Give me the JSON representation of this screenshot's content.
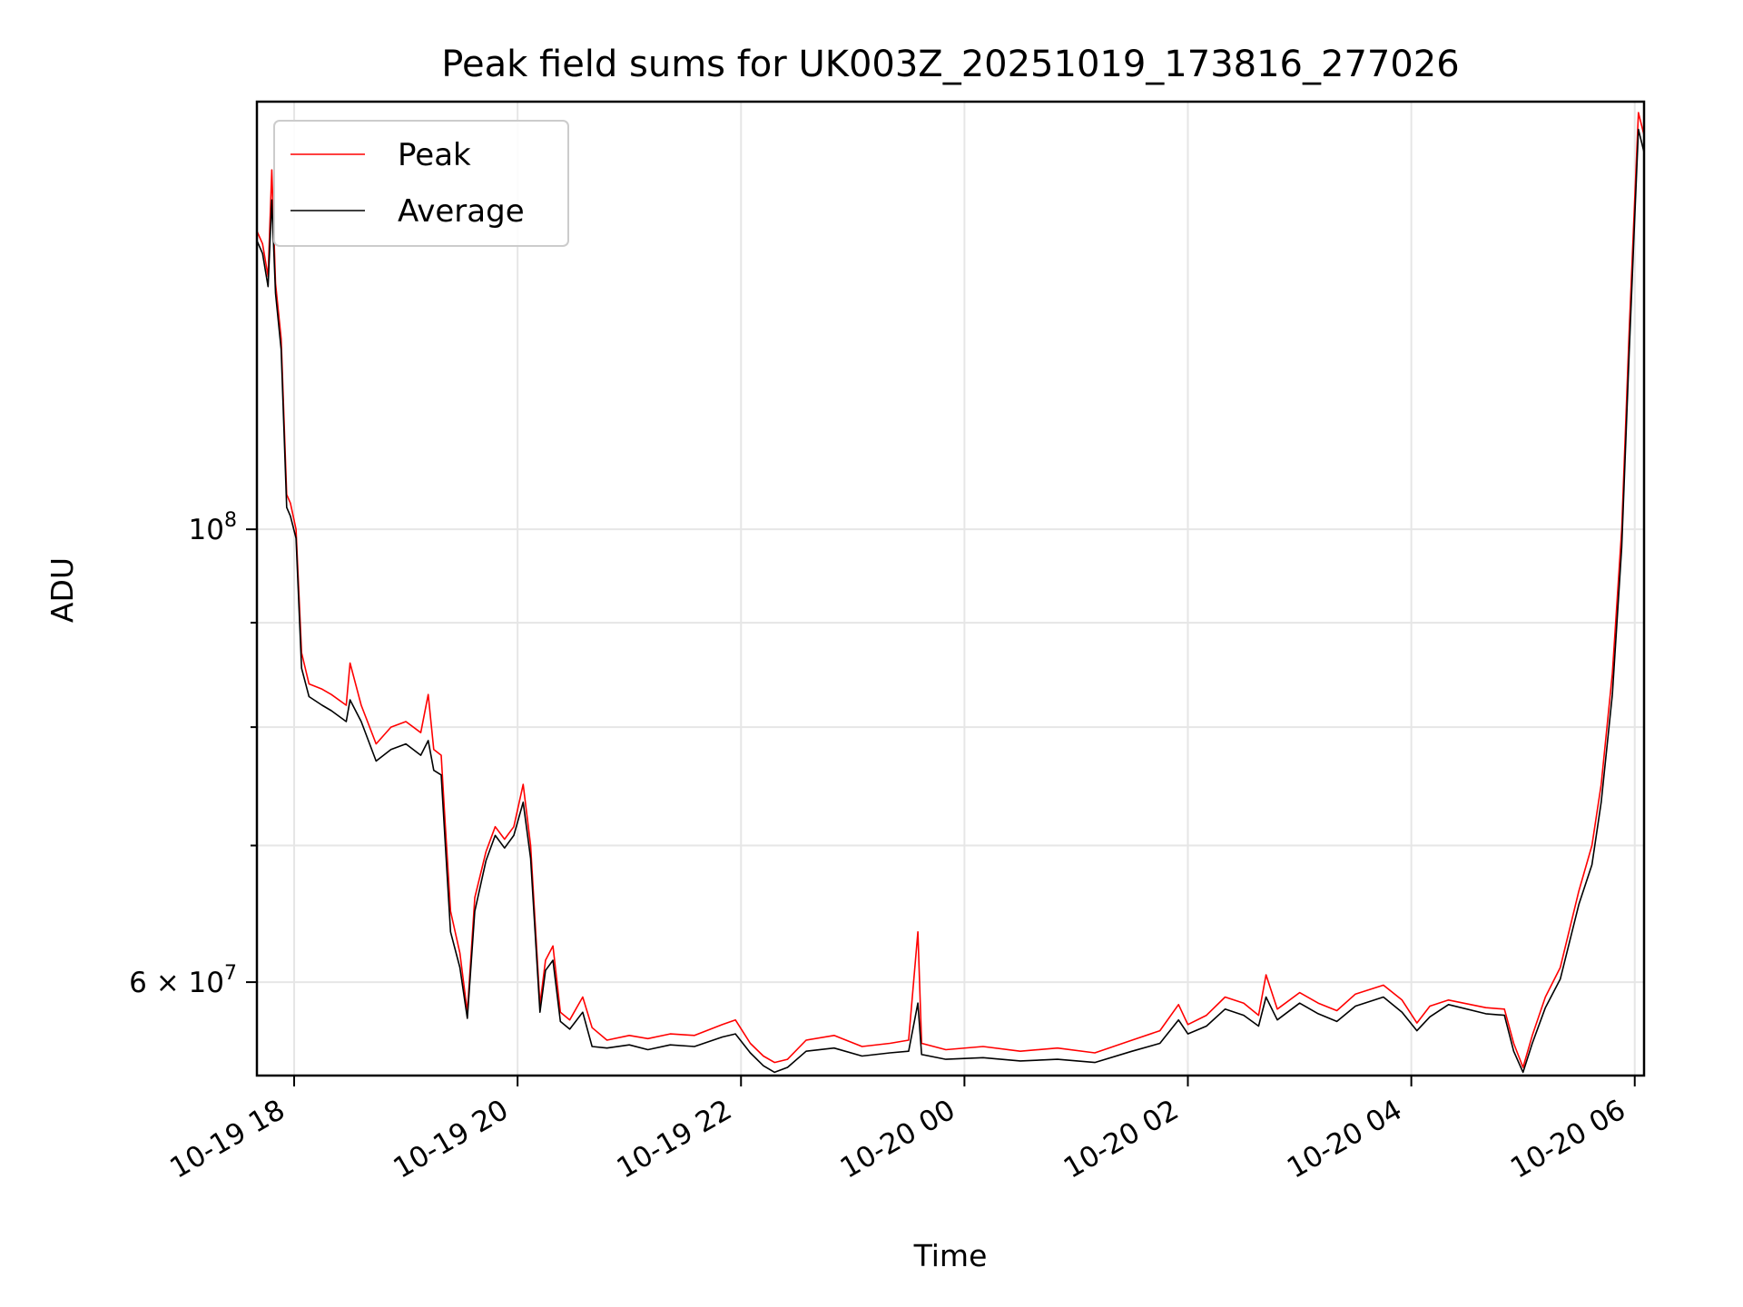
{
  "chart_data": {
    "type": "line",
    "title": "Peak field sums for UK003Z_20251019_173816_277026",
    "xlabel": "Time",
    "ylabel": "ADU",
    "y_scale": "log",
    "grid": true,
    "legend_position": "top-left",
    "x_range": [
      "2025-10-19 17:40",
      "2025-10-20 06:05"
    ],
    "ylim": [
      54000000,
      162000000
    ],
    "x_ticks": [
      "10-19 18",
      "10-19 20",
      "10-19 22",
      "10-20 00",
      "10-20 02",
      "10-20 04",
      "10-20 06"
    ],
    "x_tick_times": [
      "2025-10-19 18:00",
      "2025-10-19 20:00",
      "2025-10-19 22:00",
      "2025-10-20 00:00",
      "2025-10-20 02:00",
      "2025-10-20 04:00",
      "2025-10-20 06:00"
    ],
    "y_ticks": [
      {
        "value": 60000000,
        "label": "6 × 10",
        "exp": "7",
        "major": true
      },
      {
        "value": 70000000,
        "label": "",
        "exp": "",
        "major": false
      },
      {
        "value": 80000000,
        "label": "",
        "exp": "",
        "major": false
      },
      {
        "value": 90000000,
        "label": "",
        "exp": "",
        "major": false
      },
      {
        "value": 100000000,
        "label": "10",
        "exp": "8",
        "major": true
      }
    ],
    "series": [
      {
        "name": "Peak",
        "color": "#ff0000",
        "points": [
          [
            "2025-10-19 17:40",
            140000000
          ],
          [
            "2025-10-19 17:43",
            138000000
          ],
          [
            "2025-10-19 17:46",
            133000000
          ],
          [
            "2025-10-19 17:48",
            150000000
          ],
          [
            "2025-10-19 17:50",
            132000000
          ],
          [
            "2025-10-19 17:53",
            124000000
          ],
          [
            "2025-10-19 17:56",
            104000000
          ],
          [
            "2025-10-19 17:58",
            103000000
          ],
          [
            "2025-10-19 18:01",
            100000000
          ],
          [
            "2025-10-19 18:04",
            87000000
          ],
          [
            "2025-10-19 18:08",
            84000000
          ],
          [
            "2025-10-19 18:15",
            83500000
          ],
          [
            "2025-10-19 18:20",
            83000000
          ],
          [
            "2025-10-19 18:28",
            82000000
          ],
          [
            "2025-10-19 18:30",
            86000000
          ],
          [
            "2025-10-19 18:36",
            82000000
          ],
          [
            "2025-10-19 18:44",
            78500000
          ],
          [
            "2025-10-19 18:52",
            80000000
          ],
          [
            "2025-10-19 19:00",
            80500000
          ],
          [
            "2025-10-19 19:08",
            79500000
          ],
          [
            "2025-10-19 19:12",
            83000000
          ],
          [
            "2025-10-19 19:15",
            78000000
          ],
          [
            "2025-10-19 19:19",
            77500000
          ],
          [
            "2025-10-19 19:21",
            72000000
          ],
          [
            "2025-10-19 19:24",
            65000000
          ],
          [
            "2025-10-19 19:29",
            62000000
          ],
          [
            "2025-10-19 19:33",
            58000000
          ],
          [
            "2025-10-19 19:37",
            66000000
          ],
          [
            "2025-10-19 19:43",
            69500000
          ],
          [
            "2025-10-19 19:48",
            71500000
          ],
          [
            "2025-10-19 19:53",
            70500000
          ],
          [
            "2025-10-19 19:58",
            71500000
          ],
          [
            "2025-10-19 20:03",
            75000000
          ],
          [
            "2025-10-19 20:07",
            70000000
          ],
          [
            "2025-10-19 20:12",
            58500000
          ],
          [
            "2025-10-19 20:15",
            61500000
          ],
          [
            "2025-10-19 20:19",
            62500000
          ],
          [
            "2025-10-19 20:23",
            58000000
          ],
          [
            "2025-10-19 20:28",
            57500000
          ],
          [
            "2025-10-19 20:35",
            59000000
          ],
          [
            "2025-10-19 20:40",
            57000000
          ],
          [
            "2025-10-19 20:48",
            56200000
          ],
          [
            "2025-10-19 21:00",
            56500000
          ],
          [
            "2025-10-19 21:10",
            56300000
          ],
          [
            "2025-10-19 21:22",
            56600000
          ],
          [
            "2025-10-19 21:35",
            56500000
          ],
          [
            "2025-10-19 21:50",
            57200000
          ],
          [
            "2025-10-19 21:57",
            57500000
          ],
          [
            "2025-10-19 22:05",
            56000000
          ],
          [
            "2025-10-19 22:12",
            55200000
          ],
          [
            "2025-10-19 22:18",
            54800000
          ],
          [
            "2025-10-19 22:25",
            55000000
          ],
          [
            "2025-10-19 22:35",
            56200000
          ],
          [
            "2025-10-19 22:50",
            56500000
          ],
          [
            "2025-10-19 23:05",
            55800000
          ],
          [
            "2025-10-19 23:20",
            56000000
          ],
          [
            "2025-10-19 23:30",
            56200000
          ],
          [
            "2025-10-19 23:35",
            63500000
          ],
          [
            "2025-10-19 23:37",
            56000000
          ],
          [
            "2025-10-19 23:50",
            55600000
          ],
          [
            "2025-10-20 00:10",
            55800000
          ],
          [
            "2025-10-20 00:30",
            55500000
          ],
          [
            "2025-10-20 00:50",
            55700000
          ],
          [
            "2025-10-20 01:10",
            55400000
          ],
          [
            "2025-10-20 01:30",
            56200000
          ],
          [
            "2025-10-20 01:45",
            56800000
          ],
          [
            "2025-10-20 01:55",
            58500000
          ],
          [
            "2025-10-20 02:00",
            57200000
          ],
          [
            "2025-10-20 02:10",
            57800000
          ],
          [
            "2025-10-20 02:20",
            59000000
          ],
          [
            "2025-10-20 02:30",
            58600000
          ],
          [
            "2025-10-20 02:38",
            57800000
          ],
          [
            "2025-10-20 02:42",
            60500000
          ],
          [
            "2025-10-20 02:48",
            58200000
          ],
          [
            "2025-10-20 03:00",
            59300000
          ],
          [
            "2025-10-20 03:10",
            58600000
          ],
          [
            "2025-10-20 03:20",
            58100000
          ],
          [
            "2025-10-20 03:30",
            59200000
          ],
          [
            "2025-10-20 03:45",
            59800000
          ],
          [
            "2025-10-20 03:55",
            58800000
          ],
          [
            "2025-10-20 04:03",
            57300000
          ],
          [
            "2025-10-20 04:10",
            58400000
          ],
          [
            "2025-10-20 04:20",
            58800000
          ],
          [
            "2025-10-20 04:40",
            58300000
          ],
          [
            "2025-10-20 04:50",
            58200000
          ],
          [
            "2025-10-20 04:55",
            56000000
          ],
          [
            "2025-10-20 05:00",
            54500000
          ],
          [
            "2025-10-20 05:05",
            56500000
          ],
          [
            "2025-10-20 05:12",
            59000000
          ],
          [
            "2025-10-20 05:20",
            61000000
          ],
          [
            "2025-10-20 05:30",
            66500000
          ],
          [
            "2025-10-20 05:37",
            70000000
          ],
          [
            "2025-10-20 05:42",
            75000000
          ],
          [
            "2025-10-20 05:48",
            85000000
          ],
          [
            "2025-10-20 05:53",
            100000000
          ],
          [
            "2025-10-20 05:57",
            125000000
          ],
          [
            "2025-10-20 06:00",
            145000000
          ],
          [
            "2025-10-20 06:02",
            160000000
          ],
          [
            "2025-10-20 06:05",
            156000000
          ]
        ]
      },
      {
        "name": "Average",
        "color": "#000000",
        "points": [
          [
            "2025-10-19 17:40",
            138500000
          ],
          [
            "2025-10-19 17:43",
            136500000
          ],
          [
            "2025-10-19 17:46",
            131500000
          ],
          [
            "2025-10-19 17:48",
            145000000
          ],
          [
            "2025-10-19 17:50",
            130500000
          ],
          [
            "2025-10-19 17:53",
            122500000
          ],
          [
            "2025-10-19 17:56",
            102500000
          ],
          [
            "2025-10-19 17:58",
            101500000
          ],
          [
            "2025-10-19 18:01",
            99000000
          ],
          [
            "2025-10-19 18:04",
            85500000
          ],
          [
            "2025-10-19 18:08",
            82800000
          ],
          [
            "2025-10-19 18:15",
            82000000
          ],
          [
            "2025-10-19 18:20",
            81500000
          ],
          [
            "2025-10-19 18:28",
            80500000
          ],
          [
            "2025-10-19 18:30",
            82500000
          ],
          [
            "2025-10-19 18:36",
            80500000
          ],
          [
            "2025-10-19 18:44",
            77000000
          ],
          [
            "2025-10-19 18:52",
            78000000
          ],
          [
            "2025-10-19 19:00",
            78500000
          ],
          [
            "2025-10-19 19:08",
            77500000
          ],
          [
            "2025-10-19 19:12",
            78800000
          ],
          [
            "2025-10-19 19:15",
            76200000
          ],
          [
            "2025-10-19 19:19",
            75800000
          ],
          [
            "2025-10-19 19:21",
            70500000
          ],
          [
            "2025-10-19 19:24",
            63500000
          ],
          [
            "2025-10-19 19:29",
            61000000
          ],
          [
            "2025-10-19 19:33",
            57600000
          ],
          [
            "2025-10-19 19:37",
            65000000
          ],
          [
            "2025-10-19 19:43",
            68800000
          ],
          [
            "2025-10-19 19:48",
            70800000
          ],
          [
            "2025-10-19 19:53",
            69800000
          ],
          [
            "2025-10-19 19:58",
            70800000
          ],
          [
            "2025-10-19 20:03",
            73500000
          ],
          [
            "2025-10-19 20:07",
            69000000
          ],
          [
            "2025-10-19 20:12",
            58000000
          ],
          [
            "2025-10-19 20:15",
            60800000
          ],
          [
            "2025-10-19 20:19",
            61500000
          ],
          [
            "2025-10-19 20:23",
            57400000
          ],
          [
            "2025-10-19 20:28",
            56900000
          ],
          [
            "2025-10-19 20:35",
            58000000
          ],
          [
            "2025-10-19 20:40",
            55800000
          ],
          [
            "2025-10-19 20:48",
            55700000
          ],
          [
            "2025-10-19 21:00",
            55900000
          ],
          [
            "2025-10-19 21:10",
            55600000
          ],
          [
            "2025-10-19 21:22",
            55900000
          ],
          [
            "2025-10-19 21:35",
            55800000
          ],
          [
            "2025-10-19 21:50",
            56400000
          ],
          [
            "2025-10-19 21:57",
            56600000
          ],
          [
            "2025-10-19 22:05",
            55400000
          ],
          [
            "2025-10-19 22:12",
            54600000
          ],
          [
            "2025-10-19 22:18",
            54200000
          ],
          [
            "2025-10-19 22:25",
            54500000
          ],
          [
            "2025-10-19 22:35",
            55500000
          ],
          [
            "2025-10-19 22:50",
            55700000
          ],
          [
            "2025-10-19 23:05",
            55200000
          ],
          [
            "2025-10-19 23:20",
            55400000
          ],
          [
            "2025-10-19 23:30",
            55500000
          ],
          [
            "2025-10-19 23:35",
            58600000
          ],
          [
            "2025-10-19 23:37",
            55300000
          ],
          [
            "2025-10-19 23:50",
            55000000
          ],
          [
            "2025-10-20 00:10",
            55100000
          ],
          [
            "2025-10-20 00:30",
            54900000
          ],
          [
            "2025-10-20 00:50",
            55000000
          ],
          [
            "2025-10-20 01:10",
            54800000
          ],
          [
            "2025-10-20 01:30",
            55500000
          ],
          [
            "2025-10-20 01:45",
            56000000
          ],
          [
            "2025-10-20 01:55",
            57500000
          ],
          [
            "2025-10-20 02:00",
            56600000
          ],
          [
            "2025-10-20 02:10",
            57100000
          ],
          [
            "2025-10-20 02:20",
            58200000
          ],
          [
            "2025-10-20 02:30",
            57800000
          ],
          [
            "2025-10-20 02:38",
            57100000
          ],
          [
            "2025-10-20 02:42",
            59000000
          ],
          [
            "2025-10-20 02:48",
            57500000
          ],
          [
            "2025-10-20 03:00",
            58600000
          ],
          [
            "2025-10-20 03:10",
            57900000
          ],
          [
            "2025-10-20 03:20",
            57400000
          ],
          [
            "2025-10-20 03:30",
            58400000
          ],
          [
            "2025-10-20 03:45",
            59000000
          ],
          [
            "2025-10-20 03:55",
            58000000
          ],
          [
            "2025-10-20 04:03",
            56800000
          ],
          [
            "2025-10-20 04:10",
            57700000
          ],
          [
            "2025-10-20 04:20",
            58500000
          ],
          [
            "2025-10-20 04:40",
            57900000
          ],
          [
            "2025-10-20 04:50",
            57800000
          ],
          [
            "2025-10-20 04:55",
            55500000
          ],
          [
            "2025-10-20 05:00",
            54200000
          ],
          [
            "2025-10-20 05:05",
            56000000
          ],
          [
            "2025-10-20 05:12",
            58300000
          ],
          [
            "2025-10-20 05:20",
            60200000
          ],
          [
            "2025-10-20 05:30",
            65500000
          ],
          [
            "2025-10-20 05:37",
            68500000
          ],
          [
            "2025-10-20 05:42",
            73500000
          ],
          [
            "2025-10-20 05:48",
            83000000
          ],
          [
            "2025-10-20 05:53",
            98000000
          ],
          [
            "2025-10-20 05:57",
            122000000
          ],
          [
            "2025-10-20 06:00",
            142000000
          ],
          [
            "2025-10-20 06:02",
            157000000
          ],
          [
            "2025-10-20 06:05",
            153000000
          ]
        ]
      }
    ]
  }
}
